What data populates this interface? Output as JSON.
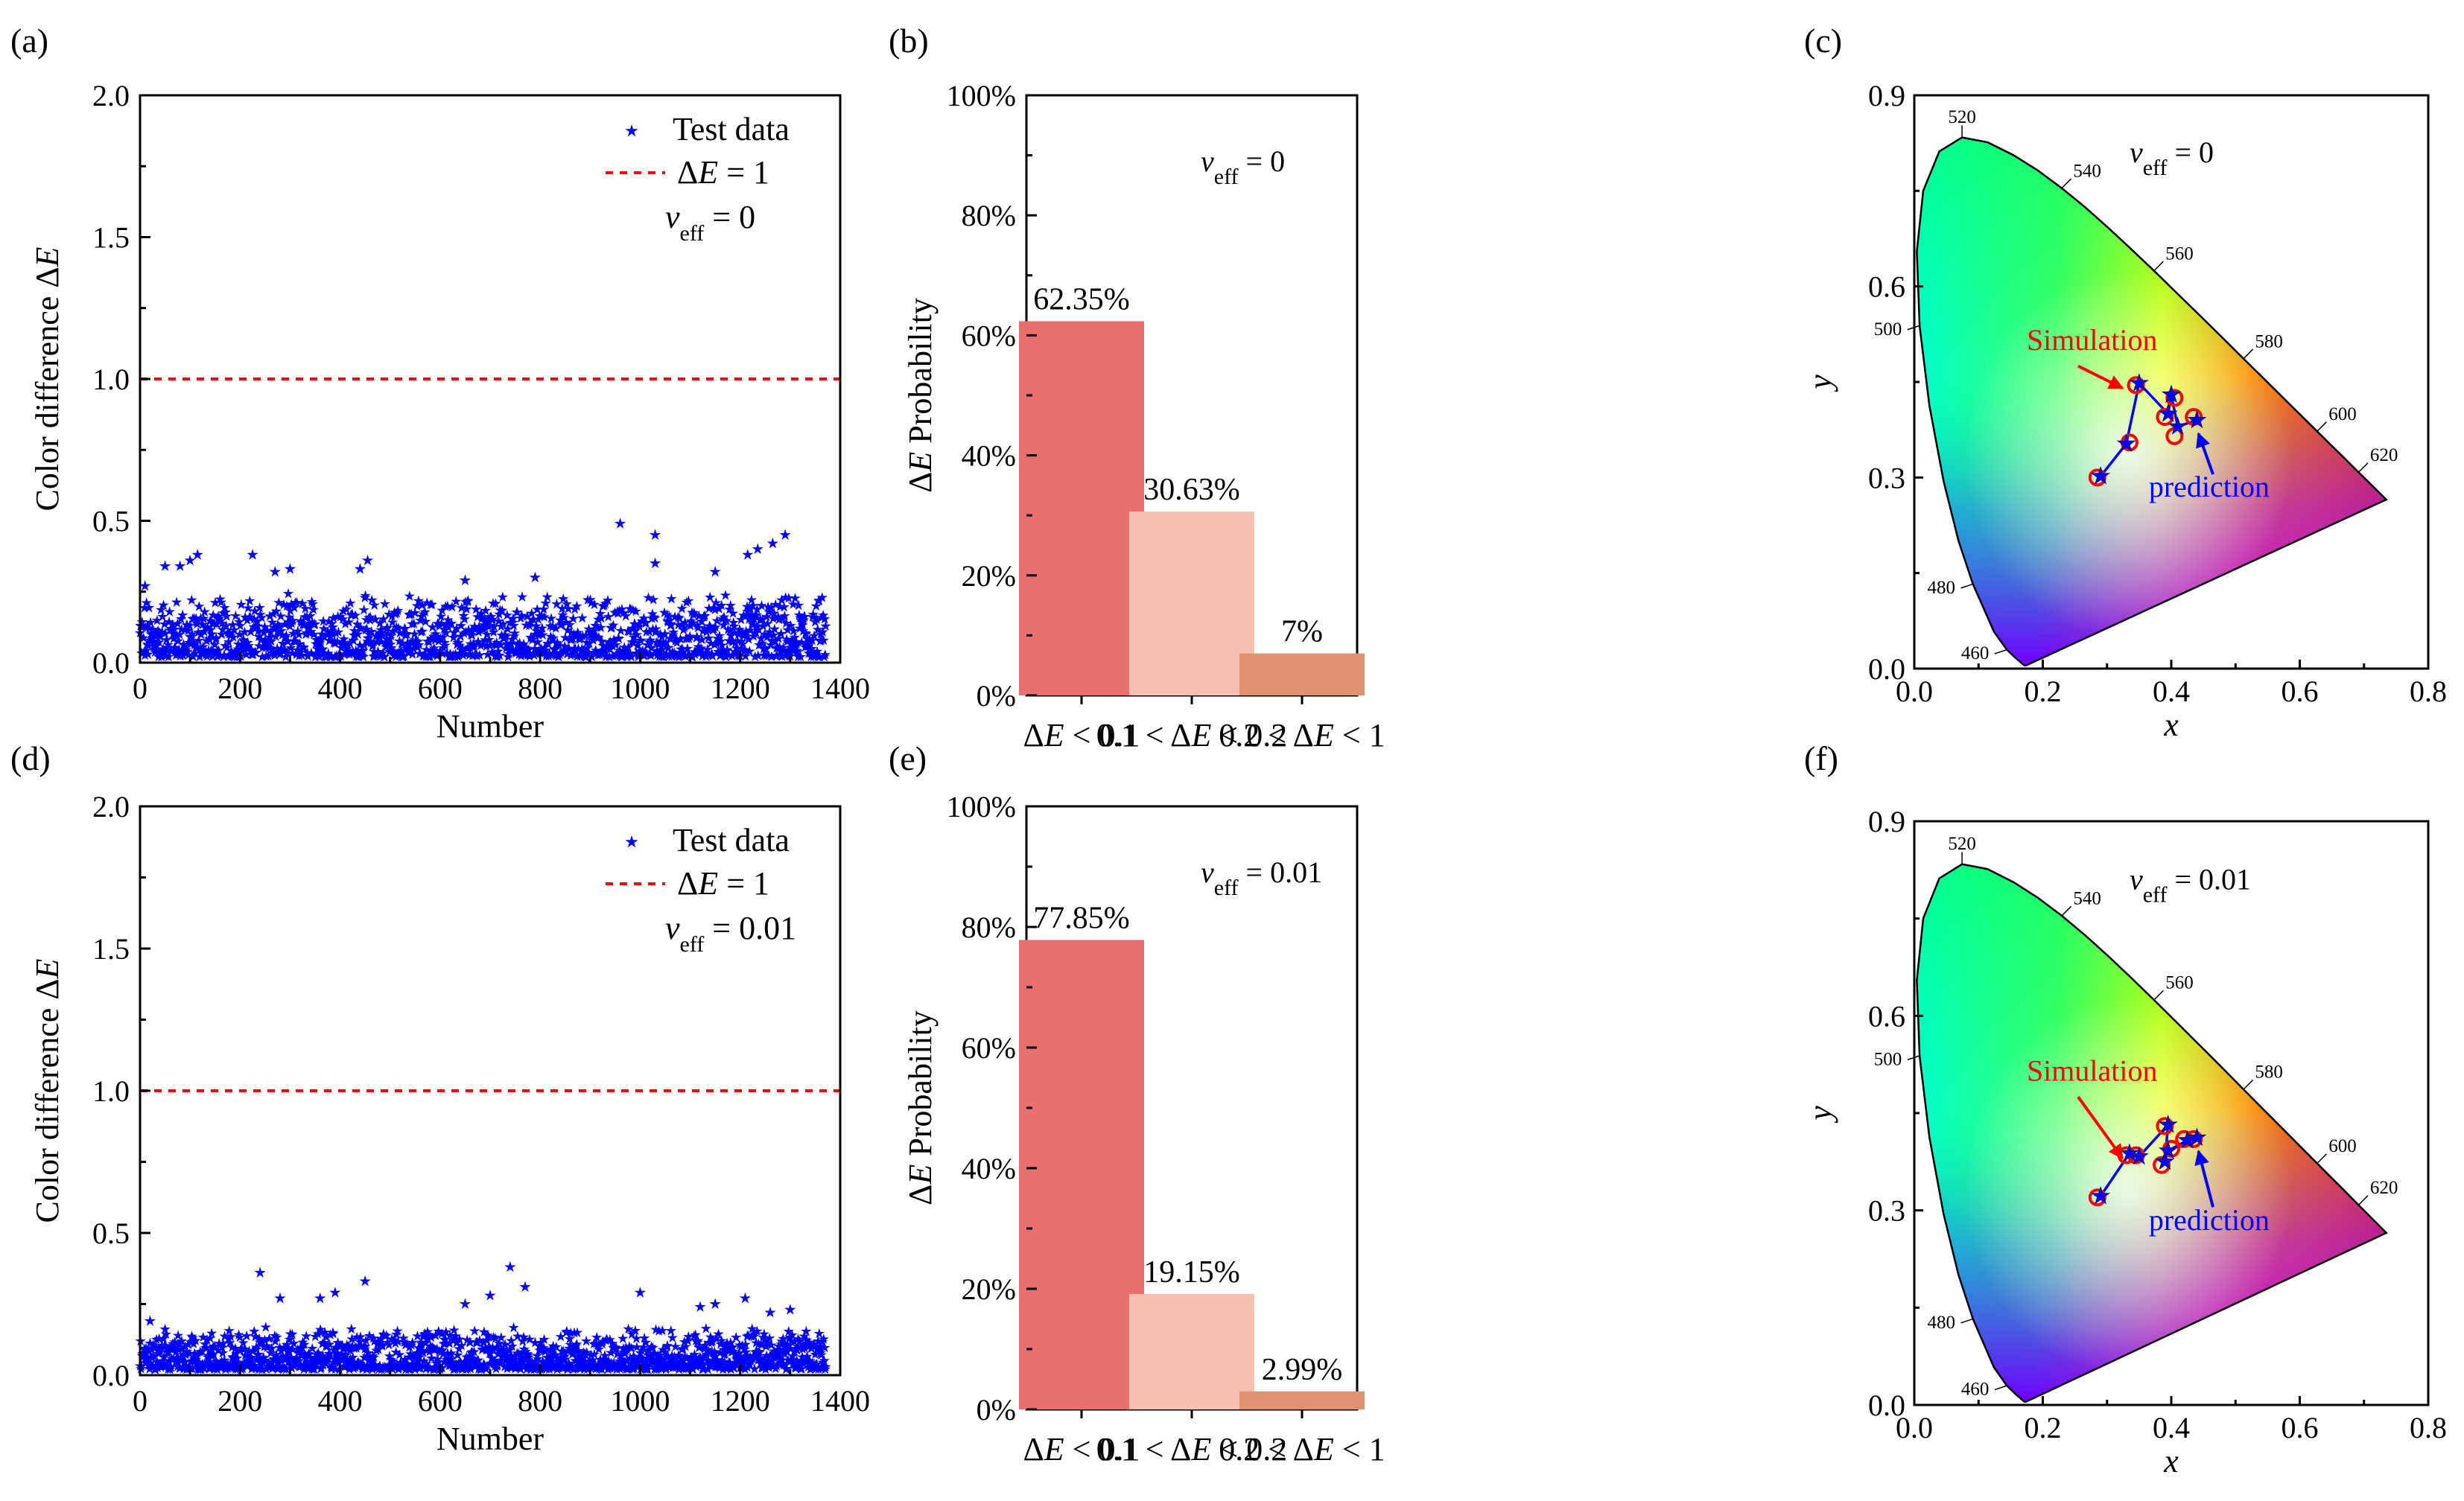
{
  "panel_labels": [
    "(a)",
    "(b)",
    "(c)",
    "(d)",
    "(e)",
    "(f)"
  ],
  "chart_data": [
    {
      "id": "a",
      "type": "scatter",
      "title": "",
      "xlabel": "Number",
      "ylabel_main": "Color difference Δ",
      "ylabel_italic": "E",
      "xlim": [
        0,
        1400
      ],
      "ylim": [
        0,
        2.0
      ],
      "xticks": [
        "0",
        "200",
        "400",
        "600",
        "800",
        "1000",
        "1200",
        "1400"
      ],
      "yticks": [
        "0.0",
        "0.5",
        "1.0",
        "1.5",
        "2.0"
      ],
      "n_points": 1370,
      "typical_range": [
        0.02,
        0.25
      ],
      "reference_line": 1.0,
      "outliers": [
        {
          "x": 10,
          "y": 0.27
        },
        {
          "x": 50,
          "y": 0.34
        },
        {
          "x": 80,
          "y": 0.34
        },
        {
          "x": 100,
          "y": 0.36
        },
        {
          "x": 115,
          "y": 0.38
        },
        {
          "x": 225,
          "y": 0.38
        },
        {
          "x": 270,
          "y": 0.32
        },
        {
          "x": 300,
          "y": 0.33
        },
        {
          "x": 440,
          "y": 0.33
        },
        {
          "x": 455,
          "y": 0.36
        },
        {
          "x": 650,
          "y": 0.29
        },
        {
          "x": 790,
          "y": 0.3
        },
        {
          "x": 960,
          "y": 0.49
        },
        {
          "x": 1030,
          "y": 0.45
        },
        {
          "x": 1030,
          "y": 0.35
        },
        {
          "x": 1150,
          "y": 0.32
        },
        {
          "x": 1215,
          "y": 0.38
        },
        {
          "x": 1235,
          "y": 0.4
        },
        {
          "x": 1265,
          "y": 0.42
        },
        {
          "x": 1290,
          "y": 0.45
        }
      ],
      "legend": {
        "marker_label": "Test data",
        "line_label": "ΔE  = 1",
        "annotation": "veff = 0",
        "position": "top-right"
      }
    },
    {
      "id": "b",
      "type": "bar",
      "ylabel": "ΔE Probability",
      "categories": [
        "ΔE < 0.1",
        "0.1 < ΔE < 0.2",
        "0.2 < ΔE < 1"
      ],
      "values": [
        62.35,
        30.63,
        7
      ],
      "value_labels": [
        "62.35%",
        "30.63%",
        "7%"
      ],
      "ylim": [
        0,
        100
      ],
      "yticks": [
        "0%",
        "20%",
        "40%",
        "60%",
        "80%",
        "100%"
      ],
      "colors": [
        "#e87070",
        "#f8c0b0",
        "#e09370"
      ],
      "annotation": "veff = 0"
    },
    {
      "id": "c",
      "type": "scatter",
      "subtype": "CIE 1931 chromaticity diagram",
      "xlabel": "x",
      "ylabel": "y",
      "xlim": [
        0,
        0.8
      ],
      "ylim": [
        0,
        0.9
      ],
      "xticks": [
        "0.0",
        "0.2",
        "0.4",
        "0.6",
        "0.8"
      ],
      "yticks": [
        "0.0",
        "0.3",
        "0.6",
        "0.9"
      ],
      "wavelength_labels": [
        "460",
        "480",
        "500",
        "520",
        "540",
        "560",
        "580",
        "600",
        "620"
      ],
      "annotation": "veff = 0",
      "simulation_label": "Simulation",
      "prediction_label": "prediction",
      "simulation_points": [
        [
          0.285,
          0.3
        ],
        [
          0.335,
          0.355
        ],
        [
          0.345,
          0.445
        ],
        [
          0.39,
          0.395
        ],
        [
          0.405,
          0.425
        ],
        [
          0.405,
          0.365
        ],
        [
          0.435,
          0.395
        ]
      ],
      "prediction_points": [
        [
          0.29,
          0.302
        ],
        [
          0.33,
          0.353
        ],
        [
          0.35,
          0.448
        ],
        [
          0.395,
          0.4
        ],
        [
          0.4,
          0.43
        ],
        [
          0.41,
          0.38
        ],
        [
          0.44,
          0.39
        ]
      ]
    },
    {
      "id": "d",
      "type": "scatter",
      "title": "",
      "xlabel": "Number",
      "ylabel_main": "Color difference Δ",
      "ylabel_italic": "E",
      "xlim": [
        0,
        1400
      ],
      "ylim": [
        0,
        2.0
      ],
      "xticks": [
        "0",
        "200",
        "400",
        "600",
        "800",
        "1000",
        "1200",
        "1400"
      ],
      "yticks": [
        "0.0",
        "0.5",
        "1.0",
        "1.5",
        "2.0"
      ],
      "n_points": 1370,
      "typical_range": [
        0.02,
        0.17
      ],
      "reference_line": 1.0,
      "outliers": [
        {
          "x": 20,
          "y": 0.19
        },
        {
          "x": 240,
          "y": 0.36
        },
        {
          "x": 280,
          "y": 0.27
        },
        {
          "x": 360,
          "y": 0.27
        },
        {
          "x": 390,
          "y": 0.29
        },
        {
          "x": 450,
          "y": 0.33
        },
        {
          "x": 650,
          "y": 0.25
        },
        {
          "x": 700,
          "y": 0.28
        },
        {
          "x": 740,
          "y": 0.38
        },
        {
          "x": 770,
          "y": 0.31
        },
        {
          "x": 1000,
          "y": 0.29
        },
        {
          "x": 1120,
          "y": 0.24
        },
        {
          "x": 1150,
          "y": 0.25
        },
        {
          "x": 1210,
          "y": 0.27
        },
        {
          "x": 1260,
          "y": 0.22
        },
        {
          "x": 1300,
          "y": 0.23
        }
      ],
      "legend": {
        "marker_label": "Test data",
        "line_label": "ΔE  = 1",
        "annotation": "veff = 0.01",
        "position": "top-right"
      }
    },
    {
      "id": "e",
      "type": "bar",
      "ylabel": "ΔE Probability",
      "categories": [
        "ΔE < 0.1",
        "0.1 < ΔE < 0.2",
        "0.2 < ΔE < 1"
      ],
      "values": [
        77.85,
        19.15,
        2.99
      ],
      "value_labels": [
        "77.85%",
        "19.15%",
        "2.99%"
      ],
      "ylim": [
        0,
        100
      ],
      "yticks": [
        "0%",
        "20%",
        "40%",
        "60%",
        "80%",
        "100%"
      ],
      "colors": [
        "#e87070",
        "#f8c0b0",
        "#e09370"
      ],
      "annotation": "veff = 0.01"
    },
    {
      "id": "f",
      "type": "scatter",
      "subtype": "CIE 1931 chromaticity diagram",
      "xlabel": "x",
      "ylabel": "y",
      "xlim": [
        0,
        0.8
      ],
      "ylim": [
        0,
        0.9
      ],
      "xticks": [
        "0.0",
        "0.2",
        "0.4",
        "0.6",
        "0.8"
      ],
      "yticks": [
        "0.0",
        "0.3",
        "0.6",
        "0.9"
      ],
      "wavelength_labels": [
        "460",
        "480",
        "500",
        "520",
        "540",
        "560",
        "580",
        "600",
        "620"
      ],
      "annotation": "veff = 0.01",
      "simulation_label": "Simulation",
      "prediction_label": "prediction",
      "simulation_points": [
        [
          0.285,
          0.32
        ],
        [
          0.33,
          0.385
        ],
        [
          0.345,
          0.385
        ],
        [
          0.39,
          0.43
        ],
        [
          0.385,
          0.37
        ],
        [
          0.4,
          0.395
        ],
        [
          0.42,
          0.41
        ],
        [
          0.435,
          0.41
        ]
      ],
      "prediction_points": [
        [
          0.29,
          0.322
        ],
        [
          0.335,
          0.388
        ],
        [
          0.35,
          0.383
        ],
        [
          0.395,
          0.432
        ],
        [
          0.39,
          0.375
        ],
        [
          0.395,
          0.392
        ],
        [
          0.425,
          0.408
        ],
        [
          0.44,
          0.412
        ]
      ]
    }
  ],
  "colors": {
    "marker": "#0000ff",
    "refline": "#ff0000",
    "sim": "#ff0000",
    "pred": "#0000ff"
  }
}
